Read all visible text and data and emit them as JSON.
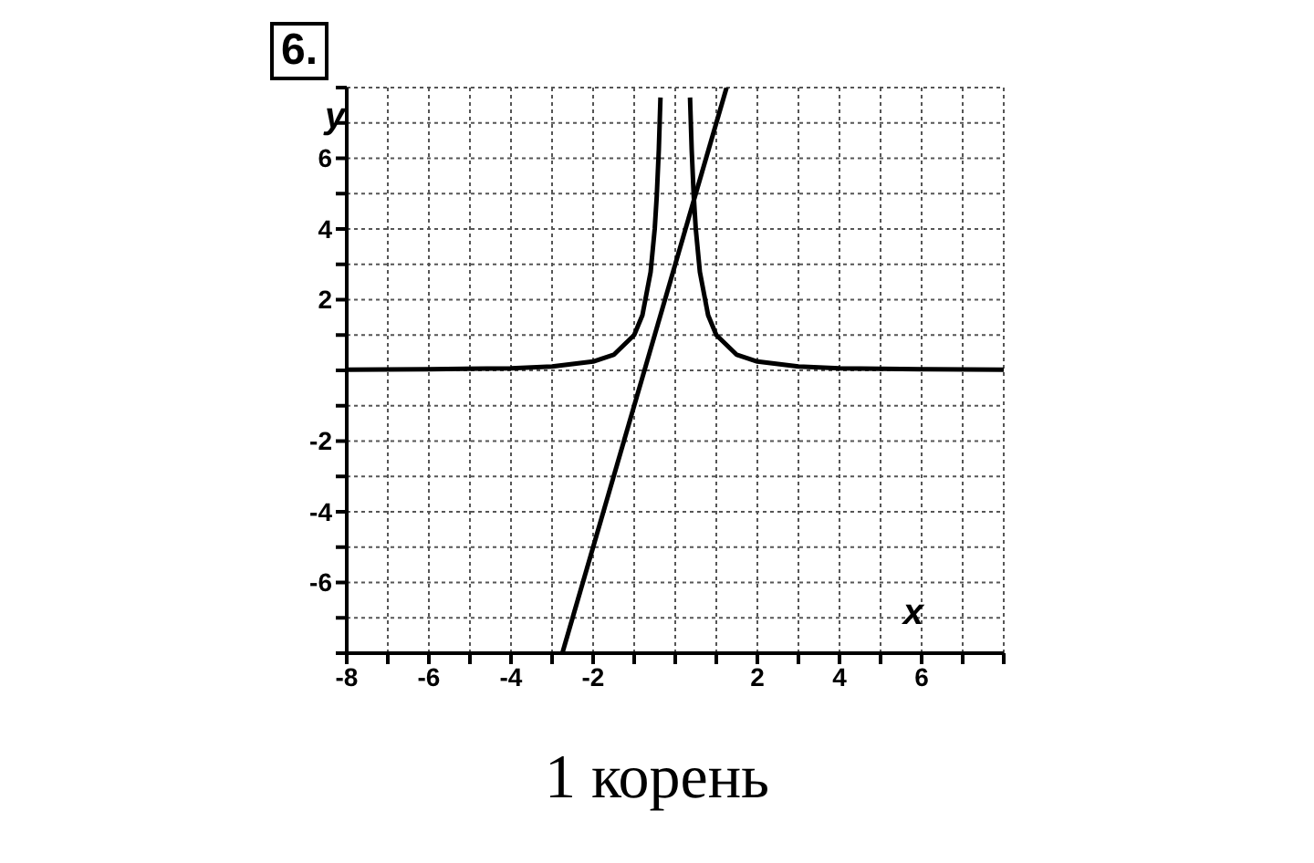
{
  "chart_data": {
    "type": "line",
    "title": "6.",
    "xlabel": "x",
    "ylabel": "y",
    "annotations": [
      "1 корень"
    ],
    "xlim": [
      -8,
      8
    ],
    "ylim": [
      -8,
      8
    ],
    "xticks": [
      -8,
      {
        "value": -7,
        "label": null
      },
      -6,
      {
        "value": -5,
        "label": null
      },
      -4,
      {
        "value": -3,
        "label": null
      },
      -2,
      {
        "value": -1,
        "label": null
      },
      {
        "value": 0,
        "label": null
      },
      {
        "value": 1,
        "label": null
      },
      2,
      {
        "value": 3,
        "label": null
      },
      4,
      {
        "value": 5,
        "label": null
      },
      6,
      {
        "value": 7,
        "label": null
      },
      {
        "value": 8,
        "label": null
      }
    ],
    "yticks": [
      {
        "value": -8,
        "label": null
      },
      {
        "value": -7,
        "label": null
      },
      -6,
      {
        "value": -5,
        "label": null
      },
      -4,
      {
        "value": -3,
        "label": null
      },
      -2,
      {
        "value": -1,
        "label": null
      },
      {
        "value": 0,
        "label": null
      },
      {
        "value": 1,
        "label": null
      },
      2,
      {
        "value": 3,
        "label": null
      },
      4,
      {
        "value": 5,
        "label": null
      },
      6,
      {
        "value": 7,
        "label": null
      },
      {
        "value": 8,
        "label": null
      }
    ],
    "grid": true,
    "marker": "none",
    "line_style": "solid",
    "series": [
      {
        "color": "#000000",
        "x": [
          -8,
          -6,
          -4,
          -3,
          -2,
          -1.5,
          -1,
          -0.8,
          -0.6,
          -0.5,
          -0.45,
          -0.4,
          -0.36,
          0,
          0.36,
          0.4,
          0.45,
          0.5,
          0.6,
          0.8,
          1,
          1.5,
          2,
          3,
          4,
          6,
          8
        ],
        "values": [
          0.02,
          0.03,
          0.06,
          0.11,
          0.25,
          0.44,
          1,
          1.56,
          2.78,
          4,
          4.94,
          6.25,
          7.72,
          null,
          7.72,
          6.25,
          4.94,
          4,
          2.78,
          1.56,
          1,
          0.44,
          0.25,
          0.11,
          0.06,
          0.03,
          0.02
        ]
      },
      {
        "color": "#000000",
        "x": [
          -2.75,
          1.25
        ],
        "values": [
          -8,
          8
        ]
      }
    ]
  }
}
